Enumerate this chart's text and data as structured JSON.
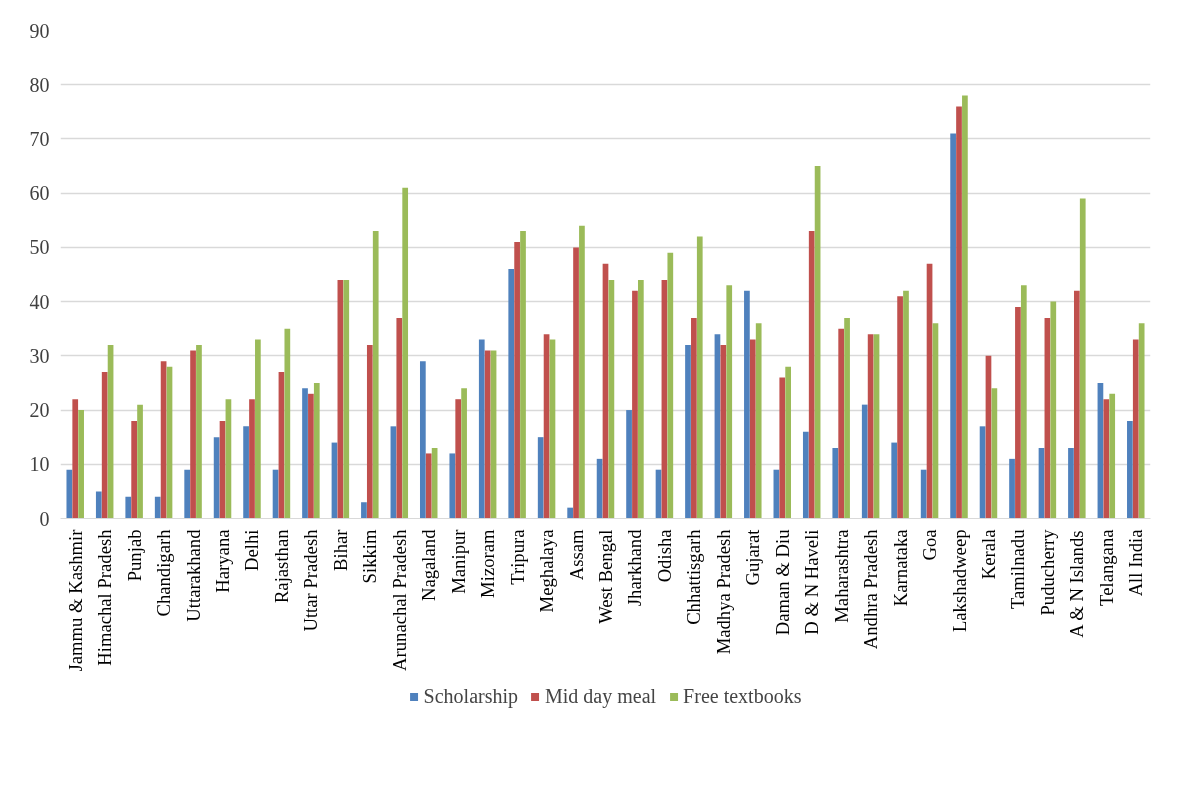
{
  "chart_data": {
    "type": "bar",
    "categories": [
      "Jammu & Kashmir",
      "Himachal Pradesh",
      "Punjab",
      "Chandigarh",
      "Uttarakhand",
      "Haryana",
      "Delhi",
      "Rajasthan",
      "Uttar Pradesh",
      "Bihar",
      "Sikkim",
      "Arunachal Pradesh",
      "Nagaland",
      "Manipur",
      "Mizoram",
      "Tripura",
      "Meghalaya",
      "Assam",
      "West Bengal",
      "Jharkhand",
      "Odisha",
      "Chhattisgarh",
      "Madhya Pradesh",
      "Gujarat",
      "Daman & Diu",
      "D & N Haveli",
      "Maharashtra",
      "Andhra Pradesh",
      "Karnataka",
      "Goa",
      "Lakshadweep",
      "Kerala",
      "Tamilnadu",
      "Puducherry",
      "A & N Islands",
      "Telangana",
      "All India"
    ],
    "series": [
      {
        "name": "Scholarship",
        "color": "#4f81bd",
        "values": [
          9,
          5,
          4,
          4,
          9,
          15,
          17,
          9,
          24,
          14,
          3,
          17,
          29,
          12,
          33,
          46,
          15,
          2,
          11,
          20,
          9,
          32,
          34,
          42,
          9,
          16,
          13,
          21,
          14,
          9,
          71,
          17,
          11,
          13,
          13,
          25,
          18
        ]
      },
      {
        "name": "Mid day meal",
        "color": "#c0504d",
        "values": [
          22,
          27,
          18,
          29,
          31,
          18,
          22,
          27,
          23,
          44,
          32,
          37,
          12,
          22,
          31,
          51,
          34,
          50,
          47,
          42,
          44,
          37,
          32,
          33,
          26,
          53,
          35,
          34,
          41,
          47,
          76,
          30,
          39,
          37,
          42,
          22,
          33
        ]
      },
      {
        "name": "Free textbooks",
        "color": "#9bbb59",
        "values": [
          20,
          32,
          21,
          28,
          32,
          22,
          33,
          35,
          25,
          44,
          53,
          61,
          13,
          24,
          31,
          53,
          33,
          54,
          44,
          44,
          49,
          52,
          43,
          36,
          28,
          65,
          37,
          34,
          42,
          36,
          78,
          24,
          43,
          40,
          59,
          23,
          36
        ]
      }
    ],
    "ylim": [
      0,
      90
    ],
    "yticks": [
      0,
      10,
      20,
      30,
      40,
      50,
      60,
      70,
      80,
      90
    ],
    "grid": "y",
    "legend": "bottom"
  }
}
